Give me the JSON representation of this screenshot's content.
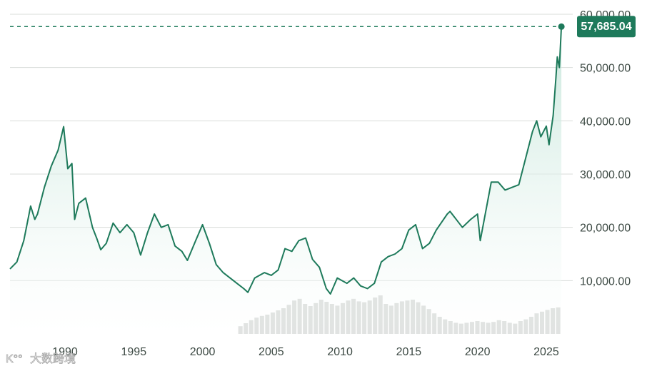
{
  "chart_data": {
    "type": "area",
    "x_start": 1986,
    "ylim": [
      0,
      60000
    ],
    "xlim": [
      1986,
      2026.3
    ],
    "grid": true,
    "y_ticks": [
      {
        "value": 10000,
        "label": "10,000.00"
      },
      {
        "value": 20000,
        "label": "20,000.00"
      },
      {
        "value": 30000,
        "label": "30,000.00"
      },
      {
        "value": 40000,
        "label": "40,000.00"
      },
      {
        "value": 50000,
        "label": "50,000.00"
      },
      {
        "value": 60000,
        "label": "60,000.00"
      }
    ],
    "x_ticks": [
      {
        "value": 1990,
        "label": "1990"
      },
      {
        "value": 1995,
        "label": "1995"
      },
      {
        "value": 2000,
        "label": "2000"
      },
      {
        "value": 2005,
        "label": "2005"
      },
      {
        "value": 2010,
        "label": "2010"
      },
      {
        "value": 2015,
        "label": "2015"
      },
      {
        "value": 2020,
        "label": "2020"
      },
      {
        "value": 2025,
        "label": "2025"
      }
    ],
    "last_value": 57685.04,
    "last_value_label": "57,685.04",
    "series": [
      {
        "points": [
          [
            1986.0,
            12200
          ],
          [
            1986.5,
            13500
          ],
          [
            1987.0,
            17500
          ],
          [
            1987.5,
            24000
          ],
          [
            1987.8,
            21500
          ],
          [
            1988.0,
            22500
          ],
          [
            1988.5,
            27500
          ],
          [
            1989.0,
            31500
          ],
          [
            1989.5,
            34500
          ],
          [
            1989.9,
            38900
          ],
          [
            1990.2,
            31000
          ],
          [
            1990.5,
            32000
          ],
          [
            1990.7,
            21500
          ],
          [
            1991.0,
            24500
          ],
          [
            1991.5,
            25500
          ],
          [
            1992.0,
            20000
          ],
          [
            1992.3,
            18000
          ],
          [
            1992.6,
            15800
          ],
          [
            1993.0,
            17000
          ],
          [
            1993.5,
            20800
          ],
          [
            1994.0,
            19000
          ],
          [
            1994.5,
            20500
          ],
          [
            1995.0,
            19000
          ],
          [
            1995.5,
            14800
          ],
          [
            1996.0,
            19000
          ],
          [
            1996.5,
            22500
          ],
          [
            1997.0,
            20000
          ],
          [
            1997.5,
            20500
          ],
          [
            1998.0,
            16500
          ],
          [
            1998.5,
            15500
          ],
          [
            1998.9,
            13800
          ],
          [
            1999.5,
            17500
          ],
          [
            2000.0,
            20500
          ],
          [
            2000.5,
            17000
          ],
          [
            2001.0,
            13000
          ],
          [
            2001.5,
            11500
          ],
          [
            2002.0,
            10500
          ],
          [
            2002.5,
            9500
          ],
          [
            2003.0,
            8500
          ],
          [
            2003.3,
            7800
          ],
          [
            2003.8,
            10500
          ],
          [
            2004.5,
            11500
          ],
          [
            2005.0,
            11000
          ],
          [
            2005.5,
            12000
          ],
          [
            2006.0,
            16000
          ],
          [
            2006.5,
            15500
          ],
          [
            2007.0,
            17500
          ],
          [
            2007.5,
            18000
          ],
          [
            2008.0,
            14000
          ],
          [
            2008.5,
            12500
          ],
          [
            2009.0,
            8500
          ],
          [
            2009.3,
            7500
          ],
          [
            2009.8,
            10500
          ],
          [
            2010.5,
            9500
          ],
          [
            2011.0,
            10500
          ],
          [
            2011.5,
            9000
          ],
          [
            2012.0,
            8500
          ],
          [
            2012.5,
            9500
          ],
          [
            2013.0,
            13500
          ],
          [
            2013.5,
            14500
          ],
          [
            2014.0,
            15000
          ],
          [
            2014.5,
            16000
          ],
          [
            2015.0,
            19500
          ],
          [
            2015.5,
            20500
          ],
          [
            2016.0,
            16000
          ],
          [
            2016.5,
            17000
          ],
          [
            2017.0,
            19500
          ],
          [
            2017.8,
            22500
          ],
          [
            2018.0,
            23000
          ],
          [
            2018.9,
            20000
          ],
          [
            2019.5,
            21500
          ],
          [
            2020.0,
            22500
          ],
          [
            2020.2,
            17500
          ],
          [
            2020.6,
            23000
          ],
          [
            2021.0,
            28500
          ],
          [
            2021.5,
            28500
          ],
          [
            2022.0,
            27000
          ],
          [
            2022.5,
            27500
          ],
          [
            2023.0,
            28000
          ],
          [
            2023.5,
            33000
          ],
          [
            2024.0,
            38000
          ],
          [
            2024.3,
            40000
          ],
          [
            2024.6,
            37000
          ],
          [
            2025.0,
            39000
          ],
          [
            2025.2,
            35500
          ],
          [
            2025.5,
            41000
          ],
          [
            2025.7,
            48000
          ],
          [
            2025.8,
            52000
          ],
          [
            2025.95,
            50000
          ],
          [
            2026.1,
            57685
          ]
        ]
      }
    ]
  },
  "volume": {
    "x_start": 2002.6,
    "x_end": 2026.1,
    "values": [
      0.18,
      0.25,
      0.32,
      0.38,
      0.42,
      0.45,
      0.5,
      0.55,
      0.6,
      0.68,
      0.78,
      0.82,
      0.7,
      0.65,
      0.72,
      0.8,
      0.75,
      0.7,
      0.66,
      0.72,
      0.78,
      0.82,
      0.76,
      0.74,
      0.78,
      0.85,
      0.9,
      0.7,
      0.66,
      0.72,
      0.76,
      0.78,
      0.8,
      0.74,
      0.66,
      0.58,
      0.48,
      0.4,
      0.34,
      0.3,
      0.26,
      0.24,
      0.26,
      0.28,
      0.3,
      0.28,
      0.26,
      0.28,
      0.32,
      0.3,
      0.26,
      0.24,
      0.3,
      0.34,
      0.4,
      0.48,
      0.52,
      0.56,
      0.6,
      0.62
    ]
  },
  "watermark": {
    "logo": "K°°",
    "text": "大数跨境"
  },
  "colors": {
    "line": "#1e7a5b",
    "fill_top": "#bfe3d6",
    "fill_bottom": "#ffffff",
    "grid": "#d8dcda",
    "badge": "#1e7a5b",
    "volume": "#c6c9c7",
    "tick": "#3d4a44"
  }
}
